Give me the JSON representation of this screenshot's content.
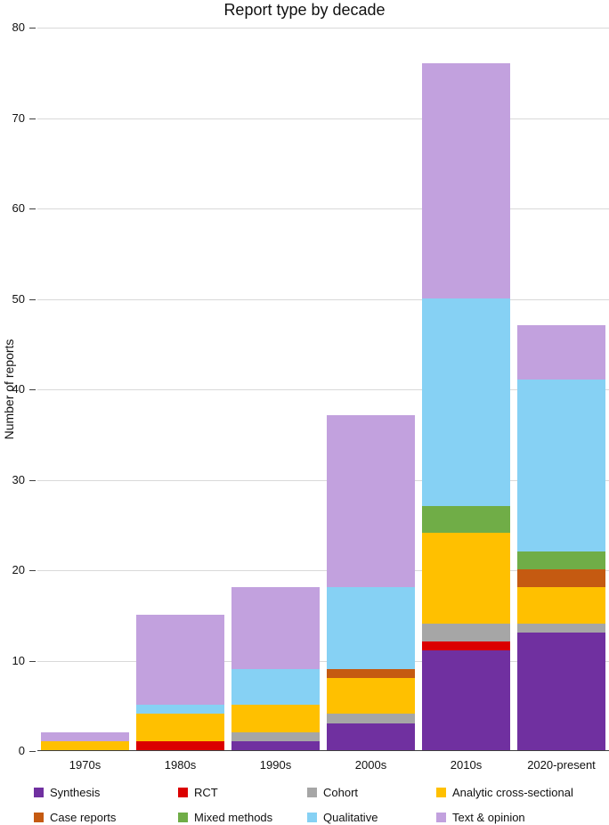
{
  "chart_data": {
    "type": "bar",
    "stacked": true,
    "title": "Report type by decade",
    "xlabel": "",
    "ylabel": "Number of reports",
    "ylim": [
      0,
      80
    ],
    "ytick_step": 10,
    "grid": "horizontal",
    "legend_position": "bottom",
    "categories": [
      "1970s",
      "1980s",
      "1990s",
      "2000s",
      "2010s",
      "2020-present"
    ],
    "series": [
      {
        "name": "Synthesis",
        "color": "#7030A0",
        "values": [
          0,
          0,
          1,
          3,
          11,
          13
        ]
      },
      {
        "name": "RCT",
        "color": "#DB0000",
        "values": [
          0,
          1,
          0,
          0,
          1,
          0
        ]
      },
      {
        "name": "Cohort",
        "color": "#A6A6A6",
        "values": [
          0,
          0,
          1,
          1,
          2,
          1
        ]
      },
      {
        "name": "Analytic cross-sectional",
        "color": "#FFC000",
        "values": [
          1,
          3,
          3,
          4,
          10,
          4
        ]
      },
      {
        "name": "Case reports",
        "color": "#C55A11",
        "values": [
          0,
          0,
          0,
          1,
          0,
          2
        ]
      },
      {
        "name": "Mixed methods",
        "color": "#70AD47",
        "values": [
          0,
          0,
          0,
          0,
          3,
          2
        ]
      },
      {
        "name": "Qualitative",
        "color": "#86D1F4",
        "values": [
          0,
          1,
          4,
          9,
          23,
          19
        ]
      },
      {
        "name": "Text & opinion",
        "color": "#C2A1DE",
        "values": [
          1,
          10,
          9,
          19,
          26,
          6
        ]
      }
    ],
    "totals": [
      2,
      15,
      18,
      37,
      76,
      47
    ],
    "legend_rows": [
      [
        "Synthesis",
        "RCT",
        "Cohort",
        "Analytic cross-sectional"
      ],
      [
        "Case reports",
        "Mixed methods",
        "Qualitative",
        "Text & opinion"
      ]
    ]
  },
  "style": {
    "gridline_color": "#d9d9d9",
    "axis_color": "#3f3f3f",
    "text_color": "#111111"
  }
}
